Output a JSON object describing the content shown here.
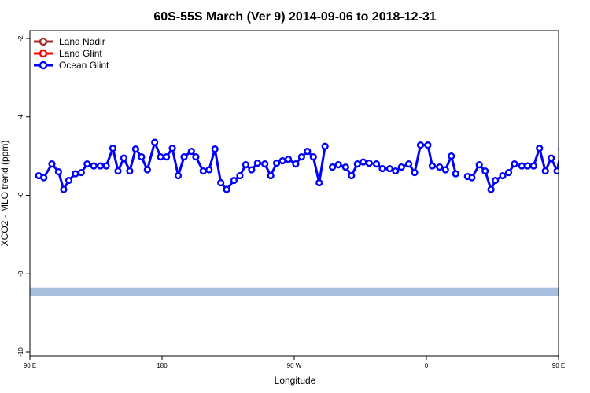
{
  "chart_data": {
    "type": "line",
    "title": "60S-55S March (Ver 9)   2014-09-06 to 2018-12-31",
    "xlabel": "Longitude",
    "ylabel": "XCO2 - MLO trend (ppm)",
    "xlim": [
      90,
      450
    ],
    "ylim": [
      -10.1,
      -1.8
    ],
    "x_ticks": [
      {
        "value": 90,
        "label": "90 E"
      },
      {
        "value": 180,
        "label": "180"
      },
      {
        "value": 270,
        "label": "90 W"
      },
      {
        "value": 360,
        "label": "0"
      },
      {
        "value": 450,
        "label": "90 E"
      },
      {
        "value": 540,
        "label": "180"
      }
    ],
    "y_ticks": [
      {
        "value": -2,
        "label": "-2"
      },
      {
        "value": -4,
        "label": "-4"
      },
      {
        "value": -6,
        "label": "-6"
      },
      {
        "value": -8,
        "label": "-8"
      },
      {
        "value": -10,
        "label": "-10"
      }
    ],
    "legend_position": "top-left",
    "grid": false,
    "band": {
      "y_min": -8.57,
      "y_max": -8.35,
      "color": "#a9bfe0"
    },
    "series": [
      {
        "name": "Land Nadir",
        "color": "#a52a2a",
        "segments": []
      },
      {
        "name": "Land Glint",
        "color": "#ff0000",
        "segments": []
      },
      {
        "name": "Ocean Glint",
        "color": "#0000ff",
        "segments": [
          [
            [
              96,
              -5.5
            ],
            [
              99.5,
              -5.55
            ],
            [
              105,
              -5.2
            ],
            [
              109.5,
              -5.4
            ],
            [
              113,
              -5.85
            ],
            [
              116.5,
              -5.62
            ],
            [
              121,
              -5.45
            ],
            [
              125,
              -5.42
            ],
            [
              129,
              -5.2
            ],
            [
              133.5,
              -5.25
            ],
            [
              138,
              -5.25
            ],
            [
              142,
              -5.25
            ],
            [
              146.5,
              -4.8
            ],
            [
              150,
              -5.38
            ],
            [
              154,
              -5.05
            ],
            [
              158,
              -5.38
            ],
            [
              162,
              -4.82
            ],
            [
              166,
              -5.02
            ],
            [
              170,
              -5.35
            ],
            [
              175,
              -4.65
            ],
            [
              179,
              -5.02
            ],
            [
              183,
              -5.02
            ],
            [
              187,
              -4.8
            ],
            [
              191,
              -5.5
            ],
            [
              195,
              -5.02
            ],
            [
              200,
              -4.88
            ],
            [
              203,
              -5.02
            ],
            [
              208,
              -5.38
            ],
            [
              212,
              -5.35
            ],
            [
              216,
              -4.82
            ],
            [
              220,
              -5.68
            ],
            [
              224,
              -5.85
            ],
            [
              229,
              -5.62
            ],
            [
              233,
              -5.5
            ],
            [
              237,
              -5.22
            ],
            [
              241,
              -5.35
            ],
            [
              245,
              -5.18
            ],
            [
              250,
              -5.2
            ],
            [
              254,
              -5.5
            ],
            [
              258,
              -5.18
            ],
            [
              262,
              -5.12
            ],
            [
              266,
              -5.08
            ],
            [
              271,
              -5.2
            ],
            [
              275,
              -5.02
            ],
            [
              279,
              -4.88
            ],
            [
              283,
              -5.02
            ],
            [
              287,
              -5.68
            ],
            [
              291,
              -4.75
            ]
          ],
          [
            [
              296,
              -5.28
            ],
            [
              300,
              -5.22
            ],
            [
              305,
              -5.28
            ],
            [
              309,
              -5.5
            ],
            [
              313,
              -5.2
            ],
            [
              317,
              -5.15
            ],
            [
              321,
              -5.18
            ],
            [
              326,
              -5.2
            ],
            [
              330,
              -5.32
            ],
            [
              335,
              -5.32
            ],
            [
              339,
              -5.38
            ],
            [
              343,
              -5.28
            ],
            [
              348,
              -5.2
            ],
            [
              352,
              -5.42
            ],
            [
              356,
              -4.72
            ],
            [
              361,
              -4.72
            ],
            [
              364,
              -5.25
            ],
            [
              369,
              -5.28
            ],
            [
              373,
              -5.35
            ],
            [
              377,
              -5.0
            ],
            [
              380,
              -5.45
            ]
          ],
          [
            [
              388,
              -5.52
            ],
            [
              391,
              -5.55
            ],
            [
              396,
              -5.22
            ],
            [
              400,
              -5.38
            ],
            [
              404,
              -5.85
            ],
            [
              407,
              -5.62
            ],
            [
              412,
              -5.5
            ],
            [
              416,
              -5.42
            ],
            [
              420,
              -5.2
            ],
            [
              425,
              -5.25
            ],
            [
              429,
              -5.25
            ],
            [
              433,
              -5.25
            ],
            [
              437,
              -4.8
            ],
            [
              441,
              -5.38
            ],
            [
              445,
              -5.05
            ],
            [
              449,
              -5.38
            ],
            [
              452,
              -4.82
            ],
            [
              456,
              -5.02
            ]
          ]
        ]
      }
    ]
  }
}
